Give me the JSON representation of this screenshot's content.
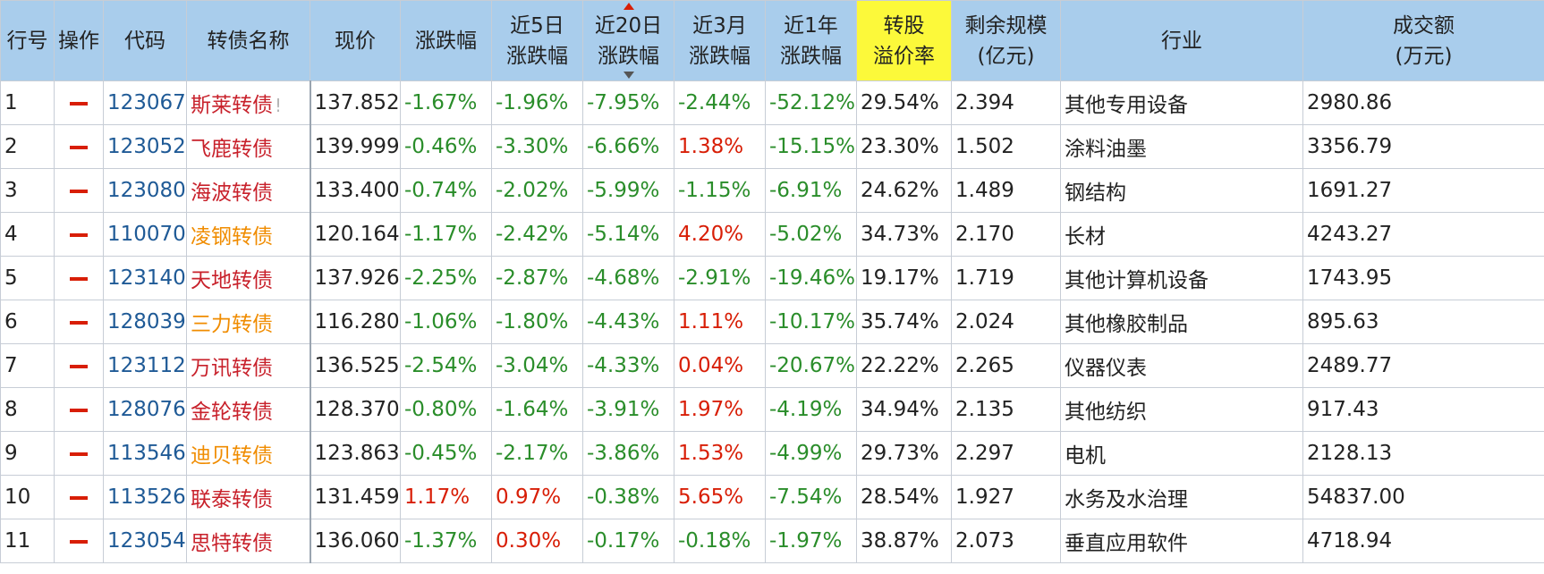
{
  "columns": [
    {
      "l1": "行号",
      "l2": ""
    },
    {
      "l1": "操作",
      "l2": ""
    },
    {
      "l1": "代码",
      "l2": ""
    },
    {
      "l1": "转债名称",
      "l2": ""
    },
    {
      "l1": "现价",
      "l2": ""
    },
    {
      "l1": "涨跌幅",
      "l2": ""
    },
    {
      "l1": "近5日",
      "l2": "涨跌幅"
    },
    {
      "l1": "近20日",
      "l2": "涨跌幅"
    },
    {
      "l1": "近3月",
      "l2": "涨跌幅"
    },
    {
      "l1": "近1年",
      "l2": "涨跌幅"
    },
    {
      "l1": "转股",
      "l2": "溢价率"
    },
    {
      "l1": "剩余规模",
      "l2": "(亿元)"
    },
    {
      "l1": "行业",
      "l2": ""
    },
    {
      "l1": "成交额",
      "l2": "(万元)"
    }
  ],
  "sort_column": "近20日涨跌幅",
  "colors": {
    "up": "#d81e06",
    "down": "#2a8d2a",
    "code": "#1f5a96",
    "name_red": "#c8212b",
    "name_orange": "#f08c00",
    "header_bg": "#a9cdec",
    "highlight_bg": "#fcf93a"
  },
  "rows": [
    {
      "no": "1",
      "op": "minus-icon",
      "code": "123067",
      "name": "斯莱转债",
      "name_color": "red",
      "badge": "!",
      "price": "137.852",
      "chg": "-1.67%",
      "chg5": "-1.96%",
      "chg20": "-7.95%",
      "chg3m": "-2.44%",
      "chg1y": "-52.12%",
      "premium": "29.54%",
      "remain": "2.394",
      "industry": "其他专用设备",
      "amount": "2980.86"
    },
    {
      "no": "2",
      "op": "minus-icon",
      "code": "123052",
      "name": "飞鹿转债",
      "name_color": "red",
      "badge": "",
      "price": "139.999",
      "chg": "-0.46%",
      "chg5": "-3.30%",
      "chg20": "-6.66%",
      "chg3m": "1.38%",
      "chg1y": "-15.15%",
      "premium": "23.30%",
      "remain": "1.502",
      "industry": "涂料油墨",
      "amount": "3356.79"
    },
    {
      "no": "3",
      "op": "minus-icon",
      "code": "123080",
      "name": "海波转债",
      "name_color": "red",
      "badge": "",
      "price": "133.400",
      "chg": "-0.74%",
      "chg5": "-2.02%",
      "chg20": "-5.99%",
      "chg3m": "-1.15%",
      "chg1y": "-6.91%",
      "premium": "24.62%",
      "remain": "1.489",
      "industry": "钢结构",
      "amount": "1691.27"
    },
    {
      "no": "4",
      "op": "minus-icon",
      "code": "110070",
      "name": "凌钢转债",
      "name_color": "orange",
      "badge": "",
      "price": "120.164",
      "chg": "-1.17%",
      "chg5": "-2.42%",
      "chg20": "-5.14%",
      "chg3m": "4.20%",
      "chg1y": "-5.02%",
      "premium": "34.73%",
      "remain": "2.170",
      "industry": "长材",
      "amount": "4243.27"
    },
    {
      "no": "5",
      "op": "minus-icon",
      "code": "123140",
      "name": "天地转债",
      "name_color": "red",
      "badge": "",
      "price": "137.926",
      "chg": "-2.25%",
      "chg5": "-2.87%",
      "chg20": "-4.68%",
      "chg3m": "-2.91%",
      "chg1y": "-19.46%",
      "premium": "19.17%",
      "remain": "1.719",
      "industry": "其他计算机设备",
      "amount": "1743.95"
    },
    {
      "no": "6",
      "op": "minus-icon",
      "code": "128039",
      "name": "三力转债",
      "name_color": "orange",
      "badge": "",
      "price": "116.280",
      "chg": "-1.06%",
      "chg5": "-1.80%",
      "chg20": "-4.43%",
      "chg3m": "1.11%",
      "chg1y": "-10.17%",
      "premium": "35.74%",
      "remain": "2.024",
      "industry": "其他橡胶制品",
      "amount": "895.63"
    },
    {
      "no": "7",
      "op": "minus-icon",
      "code": "123112",
      "name": "万讯转债",
      "name_color": "red",
      "badge": "",
      "price": "136.525",
      "chg": "-2.54%",
      "chg5": "-3.04%",
      "chg20": "-4.33%",
      "chg3m": "0.04%",
      "chg1y": "-20.67%",
      "premium": "22.22%",
      "remain": "2.265",
      "industry": "仪器仪表",
      "amount": "2489.77"
    },
    {
      "no": "8",
      "op": "minus-icon",
      "code": "128076",
      "name": "金轮转债",
      "name_color": "red",
      "badge": "",
      "price": "128.370",
      "chg": "-0.80%",
      "chg5": "-1.64%",
      "chg20": "-3.91%",
      "chg3m": "1.97%",
      "chg1y": "-4.19%",
      "premium": "34.94%",
      "remain": "2.135",
      "industry": "其他纺织",
      "amount": "917.43"
    },
    {
      "no": "9",
      "op": "minus-icon",
      "code": "113546",
      "name": "迪贝转债",
      "name_color": "orange",
      "badge": "",
      "price": "123.863",
      "chg": "-0.45%",
      "chg5": "-2.17%",
      "chg20": "-3.86%",
      "chg3m": "1.53%",
      "chg1y": "-4.99%",
      "premium": "29.73%",
      "remain": "2.297",
      "industry": "电机",
      "amount": "2128.13"
    },
    {
      "no": "10",
      "op": "minus-icon",
      "code": "113526",
      "name": "联泰转债",
      "name_color": "red",
      "badge": "",
      "price": "131.459",
      "chg": "1.17%",
      "chg5": "0.97%",
      "chg20": "-0.38%",
      "chg3m": "5.65%",
      "chg1y": "-7.54%",
      "premium": "28.54%",
      "remain": "1.927",
      "industry": "水务及水治理",
      "amount": "54837.00"
    },
    {
      "no": "11",
      "op": "minus-icon",
      "code": "123054",
      "name": "思特转债",
      "name_color": "red",
      "badge": "",
      "price": "136.060",
      "chg": "-1.37%",
      "chg5": "0.30%",
      "chg20": "-0.17%",
      "chg3m": "-0.18%",
      "chg1y": "-1.97%",
      "premium": "38.87%",
      "remain": "2.073",
      "industry": "垂直应用软件",
      "amount": "4718.94"
    }
  ]
}
